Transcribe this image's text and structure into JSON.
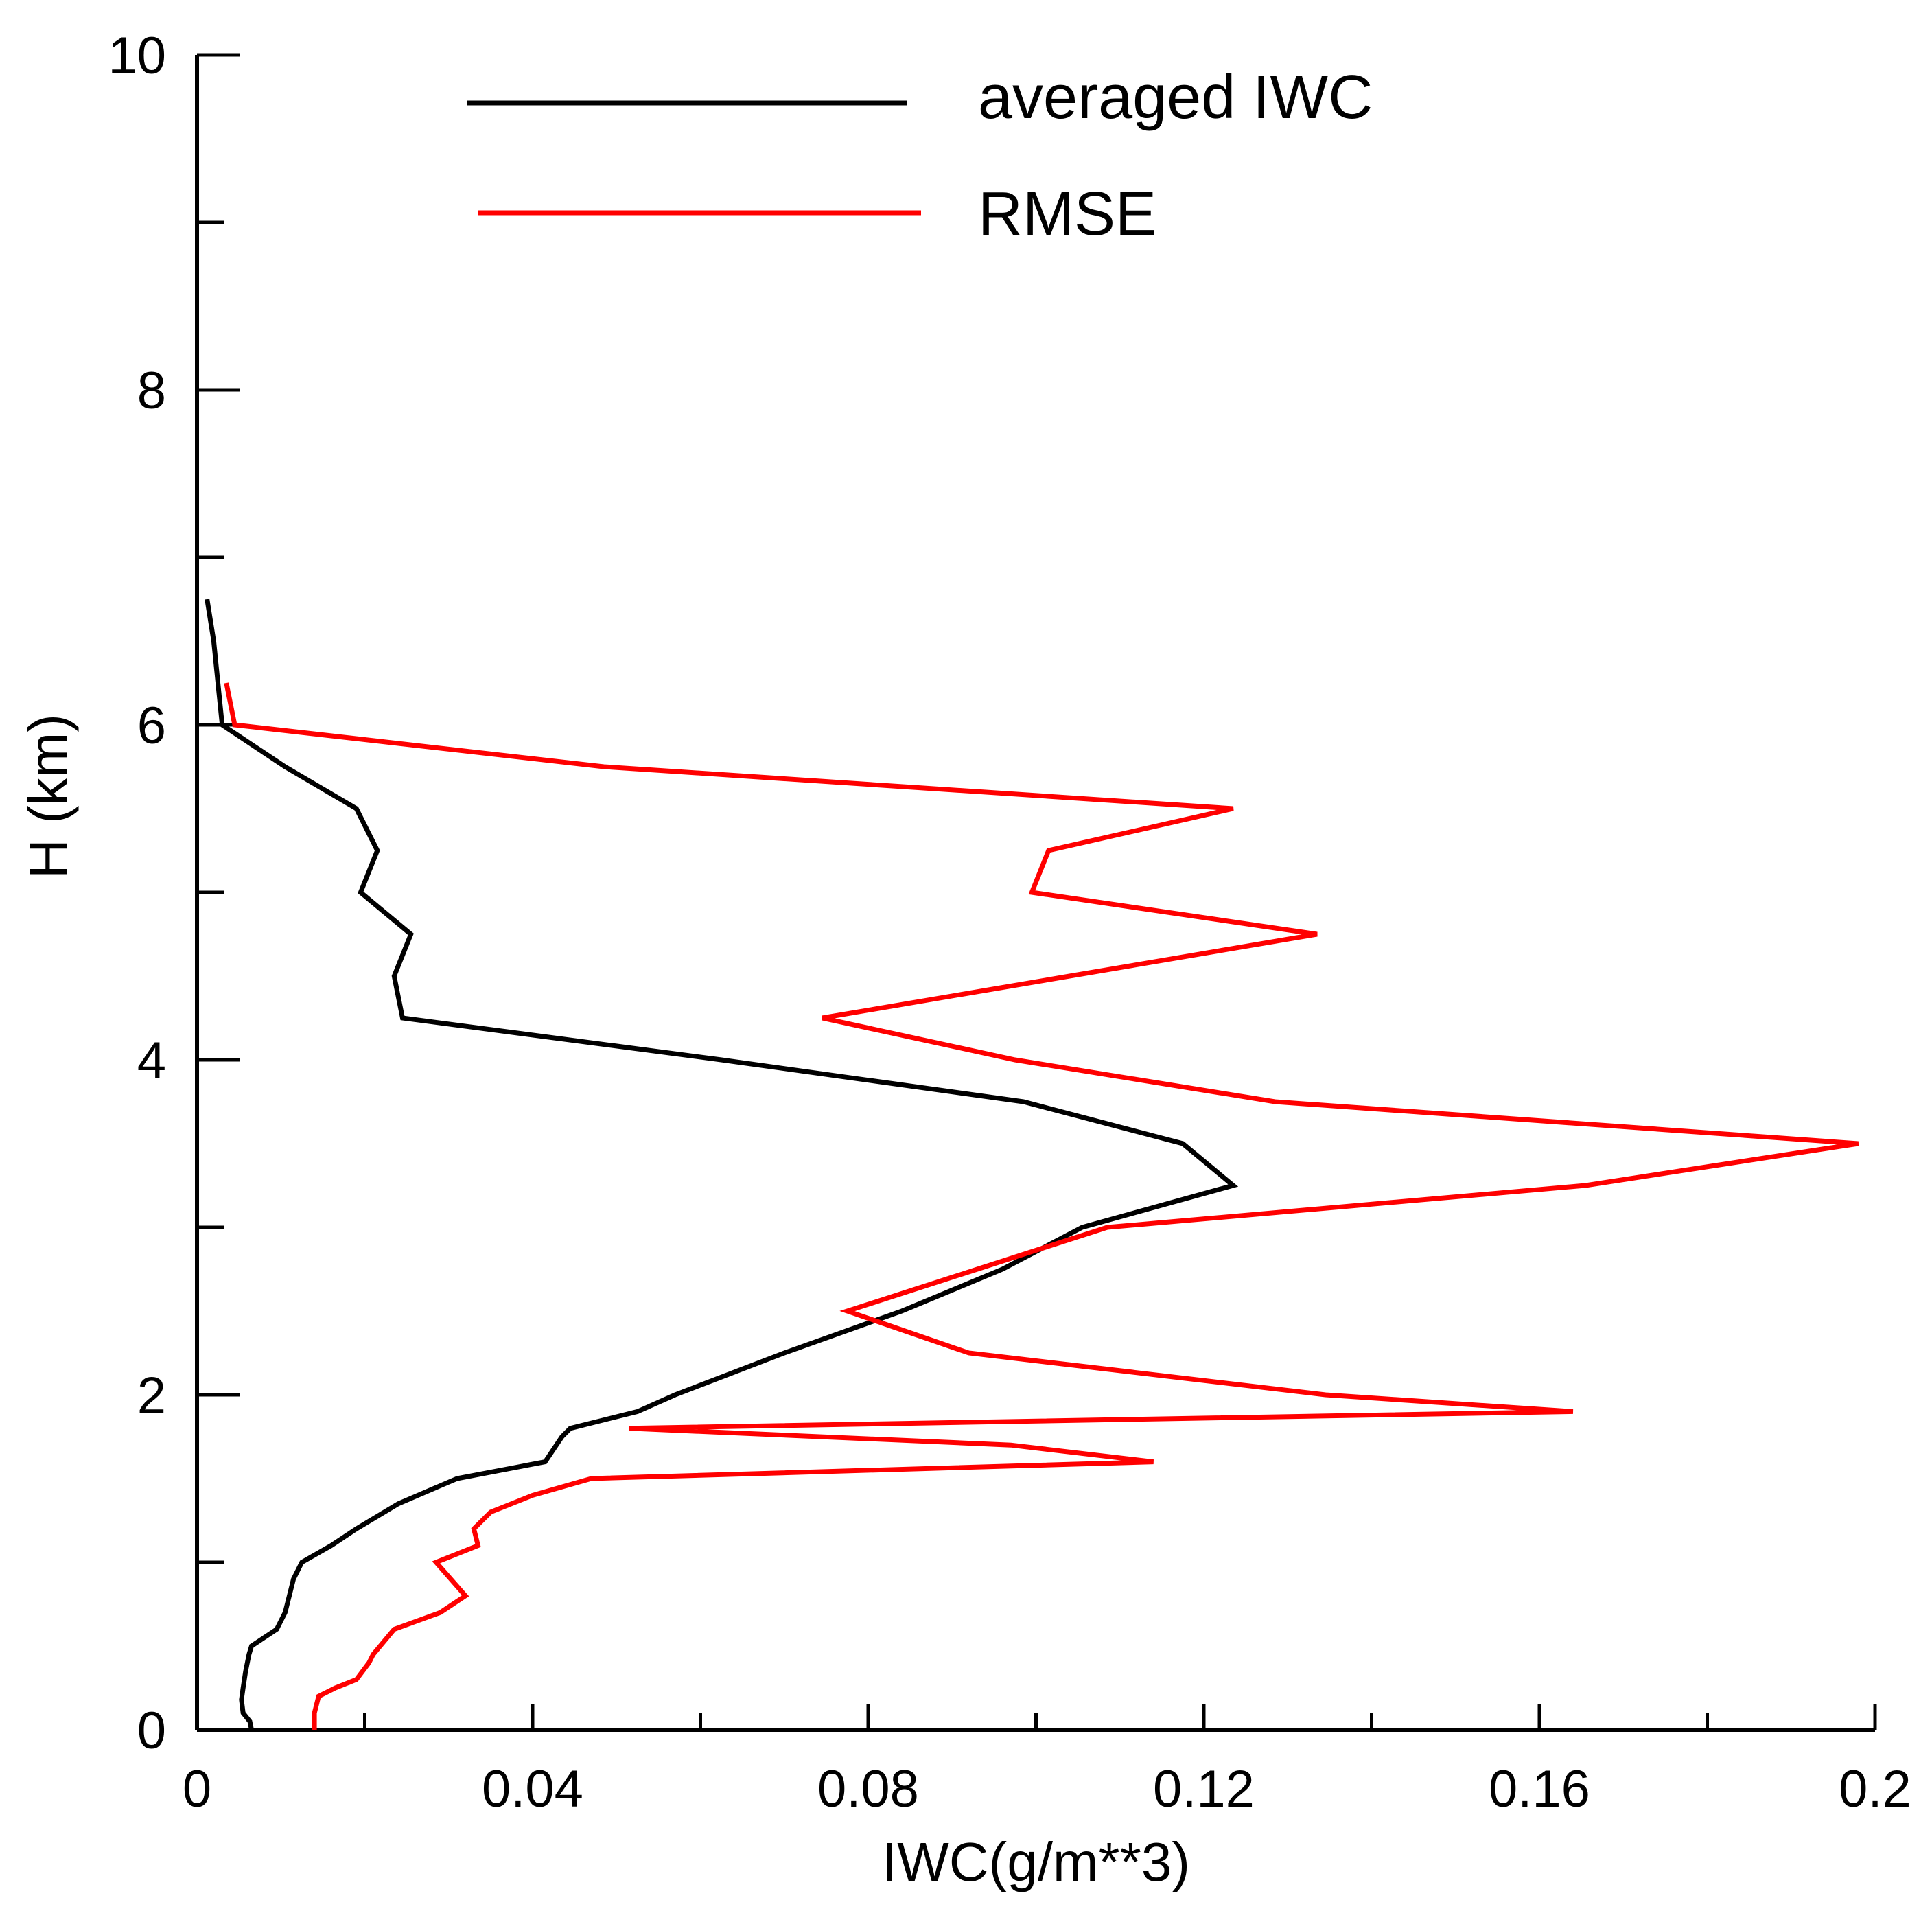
{
  "chart_data": {
    "type": "line",
    "title": "",
    "xlabel": "IWC(g/m**3)",
    "ylabel": "H (km)",
    "xlim": [
      0,
      0.2
    ],
    "ylim": [
      0,
      10
    ],
    "x_ticks": [
      "0",
      "0.04",
      "0.08",
      "0.12",
      "0.16",
      "0.2"
    ],
    "y_ticks": [
      "0",
      "2",
      "4",
      "6",
      "8",
      "10"
    ],
    "grid": false,
    "legend_position": "top",
    "series": [
      {
        "name": "averaged IWC",
        "color": "#000000",
        "points": [
          [
            0.0065,
            0.0
          ],
          [
            0.0063,
            0.05
          ],
          [
            0.0055,
            0.1
          ],
          [
            0.0053,
            0.18
          ],
          [
            0.0055,
            0.25
          ],
          [
            0.0058,
            0.35
          ],
          [
            0.0062,
            0.45
          ],
          [
            0.0065,
            0.5
          ],
          [
            0.0095,
            0.6
          ],
          [
            0.0105,
            0.7
          ],
          [
            0.011,
            0.8
          ],
          [
            0.0115,
            0.9
          ],
          [
            0.0125,
            1.0
          ],
          [
            0.016,
            1.1
          ],
          [
            0.019,
            1.2
          ],
          [
            0.024,
            1.35
          ],
          [
            0.031,
            1.5
          ],
          [
            0.0415,
            1.6
          ],
          [
            0.0435,
            1.75
          ],
          [
            0.0445,
            1.8
          ],
          [
            0.0525,
            1.9
          ],
          [
            0.057,
            2.0
          ],
          [
            0.07,
            2.25
          ],
          [
            0.084,
            2.5
          ],
          [
            0.096,
            2.75
          ],
          [
            0.1055,
            3.0
          ],
          [
            0.1235,
            3.25
          ],
          [
            0.1175,
            3.5
          ],
          [
            0.0985,
            3.75
          ],
          [
            0.0625,
            4.0
          ],
          [
            0.0245,
            4.25
          ],
          [
            0.0235,
            4.5
          ],
          [
            0.0255,
            4.75
          ],
          [
            0.0195,
            5.0
          ],
          [
            0.0215,
            5.25
          ],
          [
            0.019,
            5.5
          ],
          [
            0.0105,
            5.75
          ],
          [
            0.003,
            6.0
          ],
          [
            0.002,
            6.5
          ],
          [
            0.0012,
            6.75
          ]
        ]
      },
      {
        "name": "RMSE",
        "color": "#ff0000",
        "points": [
          [
            0.014,
            0.0
          ],
          [
            0.014,
            0.1
          ],
          [
            0.0145,
            0.2
          ],
          [
            0.0165,
            0.25
          ],
          [
            0.019,
            0.3
          ],
          [
            0.0205,
            0.4
          ],
          [
            0.021,
            0.45
          ],
          [
            0.0235,
            0.6
          ],
          [
            0.029,
            0.7
          ],
          [
            0.032,
            0.8
          ],
          [
            0.0285,
            1.0
          ],
          [
            0.0335,
            1.1
          ],
          [
            0.033,
            1.2
          ],
          [
            0.035,
            1.3
          ],
          [
            0.04,
            1.4
          ],
          [
            0.047,
            1.5
          ],
          [
            0.114,
            1.6
          ],
          [
            0.097,
            1.7
          ],
          [
            0.0515,
            1.8
          ],
          [
            0.164,
            1.9
          ],
          [
            0.1345,
            2.0
          ],
          [
            0.092,
            2.25
          ],
          [
            0.0775,
            2.5
          ],
          [
            0.093,
            2.75
          ],
          [
            0.1085,
            3.0
          ],
          [
            0.1655,
            3.25
          ],
          [
            0.198,
            3.5
          ],
          [
            0.1285,
            3.75
          ],
          [
            0.0975,
            4.0
          ],
          [
            0.0745,
            4.25
          ],
          [
            0.104,
            4.5
          ],
          [
            0.1335,
            4.75
          ],
          [
            0.0995,
            5.0
          ],
          [
            0.1015,
            5.25
          ],
          [
            0.1235,
            5.5
          ],
          [
            0.0485,
            5.75
          ],
          [
            0.0045,
            6.0
          ],
          [
            0.0035,
            6.25
          ]
        ]
      }
    ]
  }
}
